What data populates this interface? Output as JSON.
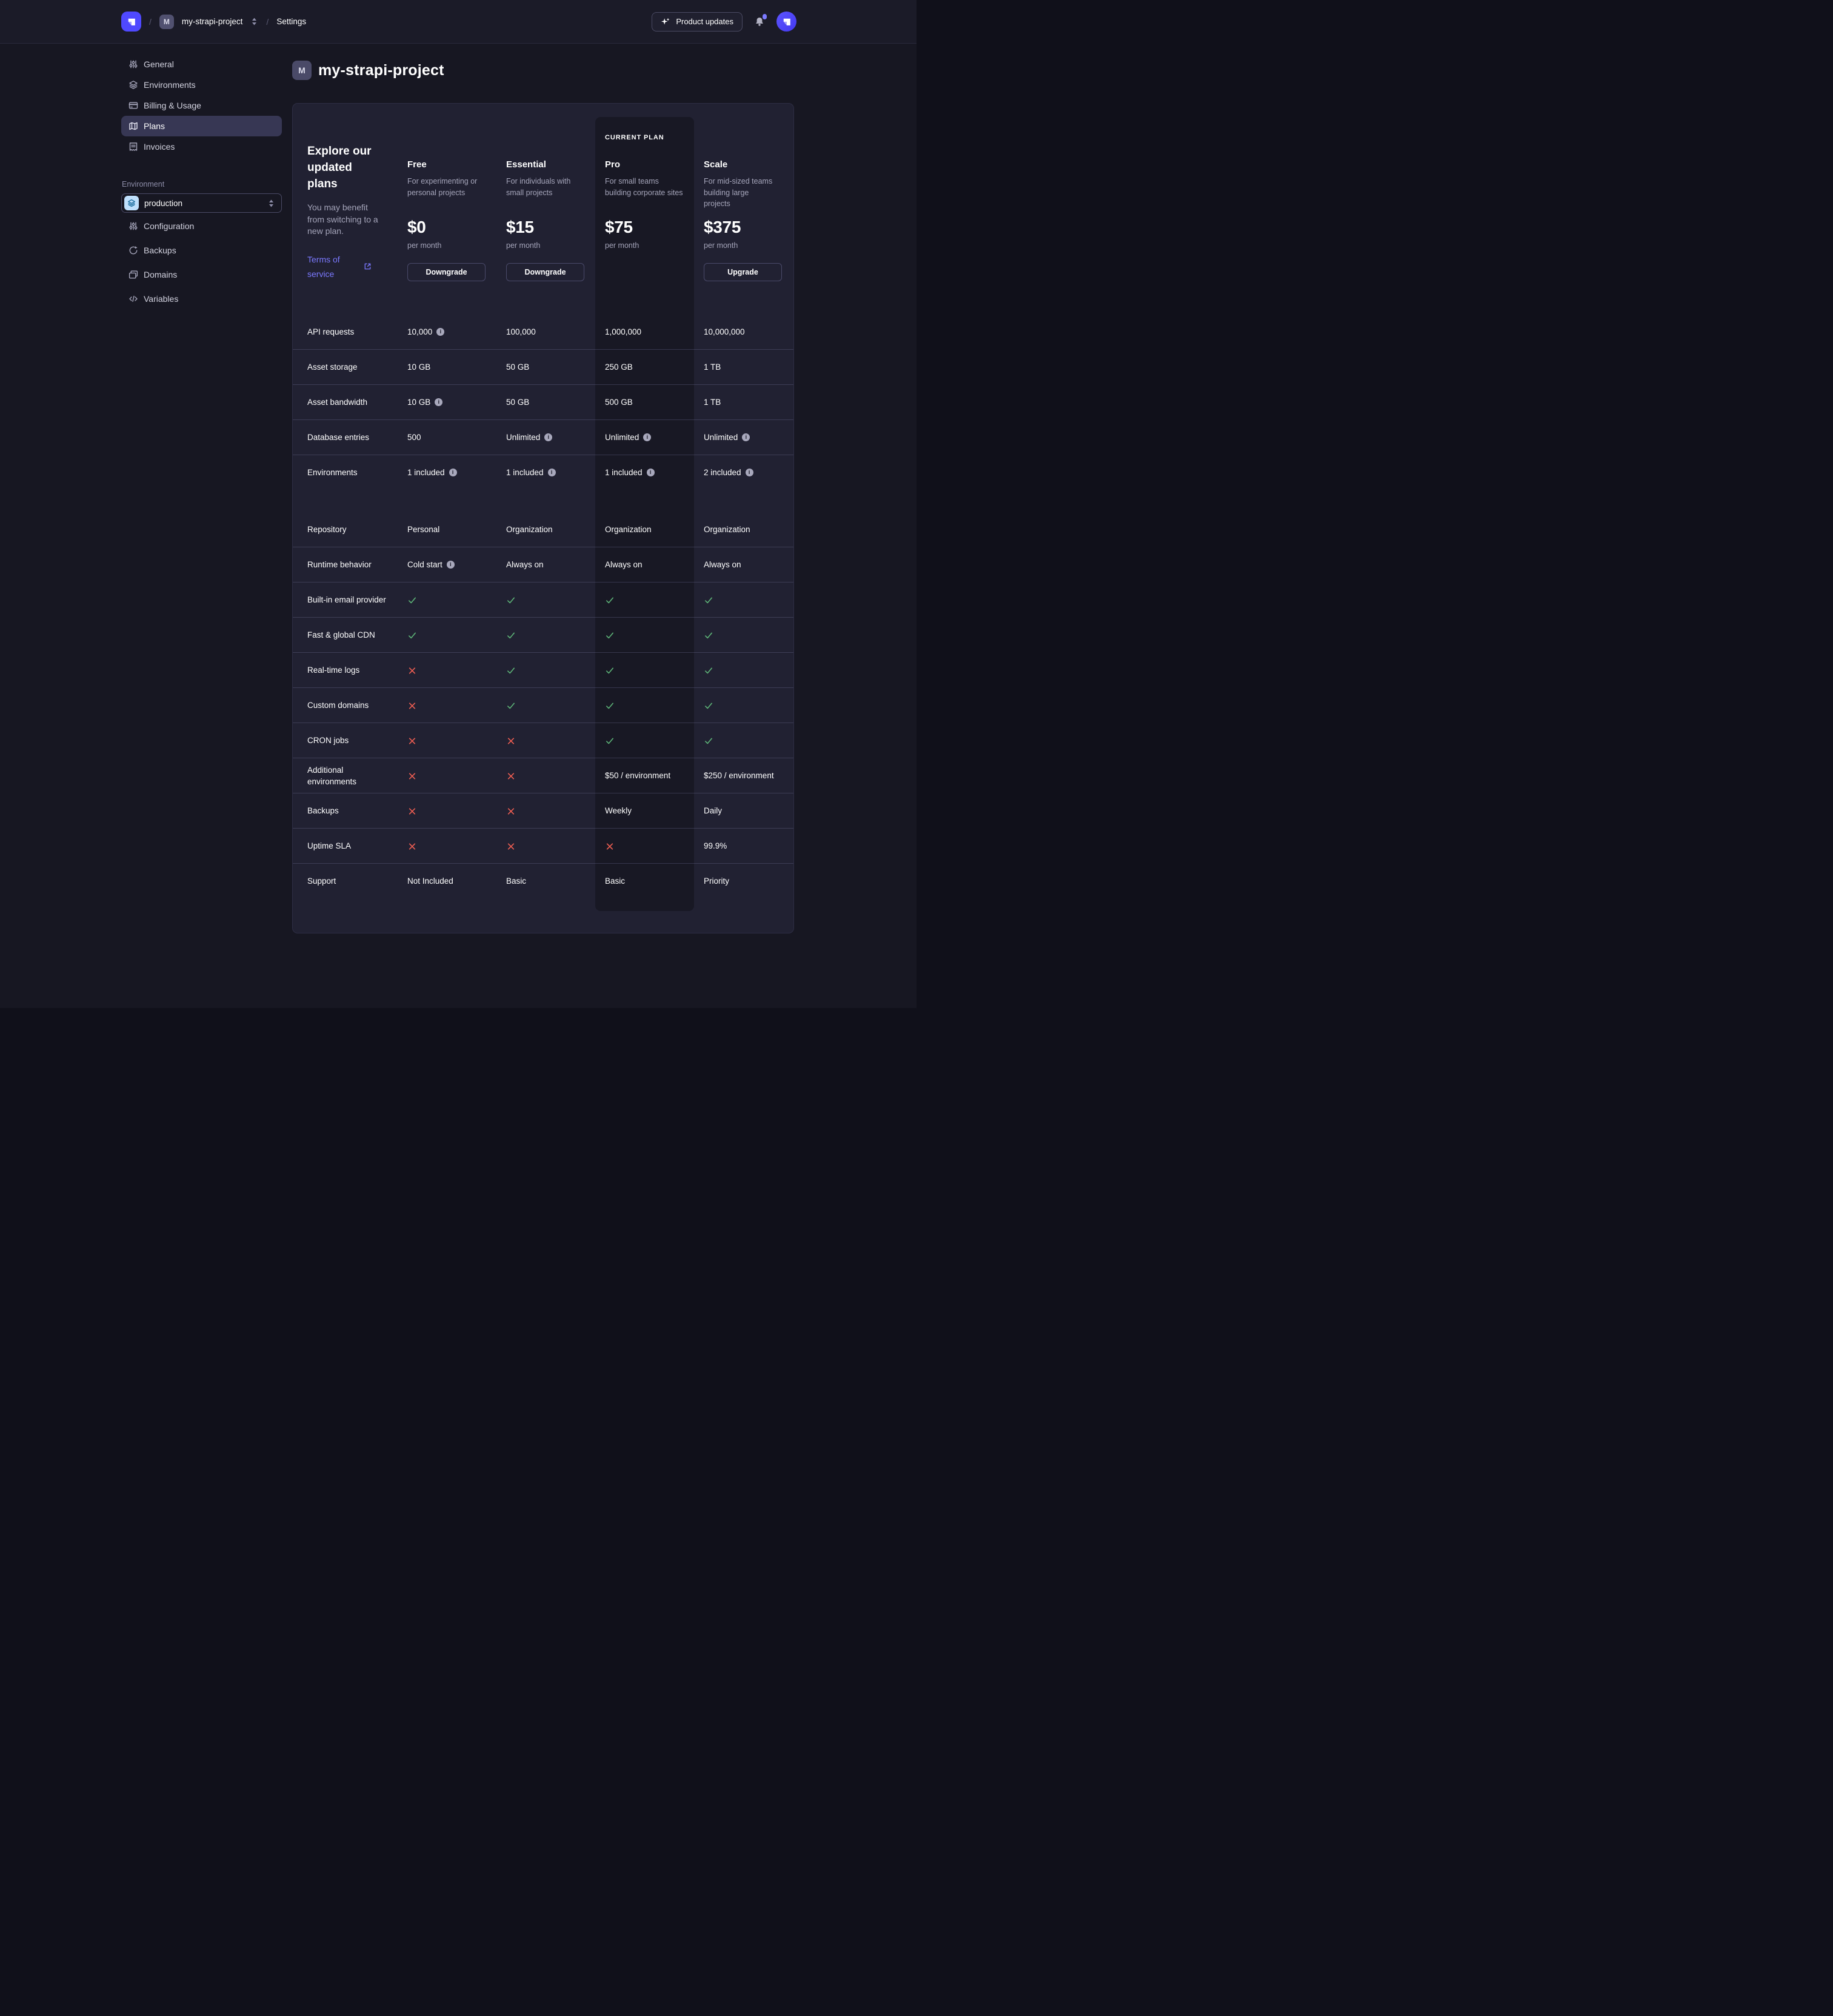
{
  "navbar": {
    "separator": "/",
    "project_badge": "M",
    "project_name": "my-strapi-project",
    "settings_label": "Settings",
    "product_updates_label": "Product updates"
  },
  "sidebar": {
    "project_items": [
      {
        "label": "General",
        "icon": "sliders",
        "active": false
      },
      {
        "label": "Environments",
        "icon": "layers",
        "active": false
      },
      {
        "label": "Billing & Usage",
        "icon": "credit-card",
        "active": false
      },
      {
        "label": "Plans",
        "icon": "map",
        "active": true
      },
      {
        "label": "Invoices",
        "icon": "receipt",
        "active": false
      }
    ],
    "environment_label": "Environment",
    "environment_selector": {
      "value": "production",
      "icon": "layers"
    },
    "environment_items": [
      {
        "label": "Configuration",
        "icon": "sliders"
      },
      {
        "label": "Backups",
        "icon": "refresh"
      },
      {
        "label": "Domains",
        "icon": "stack"
      },
      {
        "label": "Variables",
        "icon": "code"
      }
    ]
  },
  "page": {
    "title_badge": "M",
    "title": "my-strapi-project"
  },
  "plans": {
    "intro": {
      "title": "Explore our updated plans",
      "subtitle": "You may benefit from switching to a new plan.",
      "link_label": "Terms of service"
    },
    "current_plan_label": "CURRENT PLAN",
    "columns": [
      {
        "name": "Free",
        "description": "For experimenting or personal projects",
        "price": "$0",
        "period": "per month",
        "action": "Downgrade",
        "current": false
      },
      {
        "name": "Essential",
        "description": "For individuals with small projects",
        "price": "$15",
        "period": "per month",
        "action": "Downgrade",
        "current": false
      },
      {
        "name": "Pro",
        "description": "For small teams building corporate sites",
        "price": "$75",
        "period": "per month",
        "action": null,
        "current": true
      },
      {
        "name": "Scale",
        "description": "For mid-sized teams building large projects",
        "price": "$375",
        "period": "per month",
        "action": "Upgrade",
        "current": false
      }
    ],
    "features": [
      {
        "label": "API requests",
        "cells": [
          {
            "text": "10,000",
            "info": true
          },
          {
            "text": "100,000"
          },
          {
            "text": "1,000,000"
          },
          {
            "text": "10,000,000"
          }
        ]
      },
      {
        "label": "Asset storage",
        "cells": [
          {
            "text": "10 GB"
          },
          {
            "text": "50 GB"
          },
          {
            "text": "250 GB"
          },
          {
            "text": "1 TB"
          }
        ]
      },
      {
        "label": "Asset bandwidth",
        "cells": [
          {
            "text": "10 GB",
            "info": true
          },
          {
            "text": "50 GB"
          },
          {
            "text": "500 GB"
          },
          {
            "text": "1 TB"
          }
        ]
      },
      {
        "label": "Database entries",
        "cells": [
          {
            "text": "500"
          },
          {
            "text": "Unlimited",
            "info": true
          },
          {
            "text": "Unlimited",
            "info": true
          },
          {
            "text": "Unlimited",
            "info": true
          }
        ]
      },
      {
        "label": "Environments",
        "cells": [
          {
            "text": "1 included",
            "info": true
          },
          {
            "text": "1 included",
            "info": true
          },
          {
            "text": "1 included",
            "info": true
          },
          {
            "text": "2 included",
            "info": true
          }
        ]
      },
      {
        "label": "Repository",
        "section_start": true,
        "cells": [
          {
            "text": "Personal"
          },
          {
            "text": "Organization"
          },
          {
            "text": "Organization"
          },
          {
            "text": "Organization"
          }
        ]
      },
      {
        "label": "Runtime behavior",
        "cells": [
          {
            "text": "Cold start",
            "info": true
          },
          {
            "text": "Always on"
          },
          {
            "text": "Always on"
          },
          {
            "text": "Always on"
          }
        ]
      },
      {
        "label": "Built-in email provider",
        "cells": [
          {
            "icon": "check"
          },
          {
            "icon": "check"
          },
          {
            "icon": "check"
          },
          {
            "icon": "check"
          }
        ]
      },
      {
        "label": "Fast & global CDN",
        "cells": [
          {
            "icon": "check"
          },
          {
            "icon": "check"
          },
          {
            "icon": "check"
          },
          {
            "icon": "check"
          }
        ]
      },
      {
        "label": "Real-time logs",
        "cells": [
          {
            "icon": "cross"
          },
          {
            "icon": "check"
          },
          {
            "icon": "check"
          },
          {
            "icon": "check"
          }
        ]
      },
      {
        "label": "Custom domains",
        "cells": [
          {
            "icon": "cross"
          },
          {
            "icon": "check"
          },
          {
            "icon": "check"
          },
          {
            "icon": "check"
          }
        ]
      },
      {
        "label": "CRON jobs",
        "cells": [
          {
            "icon": "cross"
          },
          {
            "icon": "cross"
          },
          {
            "icon": "check"
          },
          {
            "icon": "check"
          }
        ]
      },
      {
        "label": "Additional environments",
        "cells": [
          {
            "icon": "cross"
          },
          {
            "icon": "cross"
          },
          {
            "text": "$50 / environment"
          },
          {
            "text": "$250 / environment"
          }
        ]
      },
      {
        "label": "Backups",
        "cells": [
          {
            "icon": "cross"
          },
          {
            "icon": "cross"
          },
          {
            "text": "Weekly"
          },
          {
            "text": "Daily"
          }
        ]
      },
      {
        "label": "Uptime SLA",
        "cells": [
          {
            "icon": "cross"
          },
          {
            "icon": "cross"
          },
          {
            "icon": "cross"
          },
          {
            "text": "99.9%"
          }
        ]
      },
      {
        "label": "Support",
        "cells": [
          {
            "text": "Not Included"
          },
          {
            "text": "Basic"
          },
          {
            "text": "Basic"
          },
          {
            "text": "Priority"
          }
        ]
      }
    ]
  },
  "colors": {
    "accent": "#4945ff",
    "link": "#7b79ff",
    "success": "#5cb176",
    "danger": "#ee5e52",
    "environment_icon_bg": "#bfe0fc"
  }
}
